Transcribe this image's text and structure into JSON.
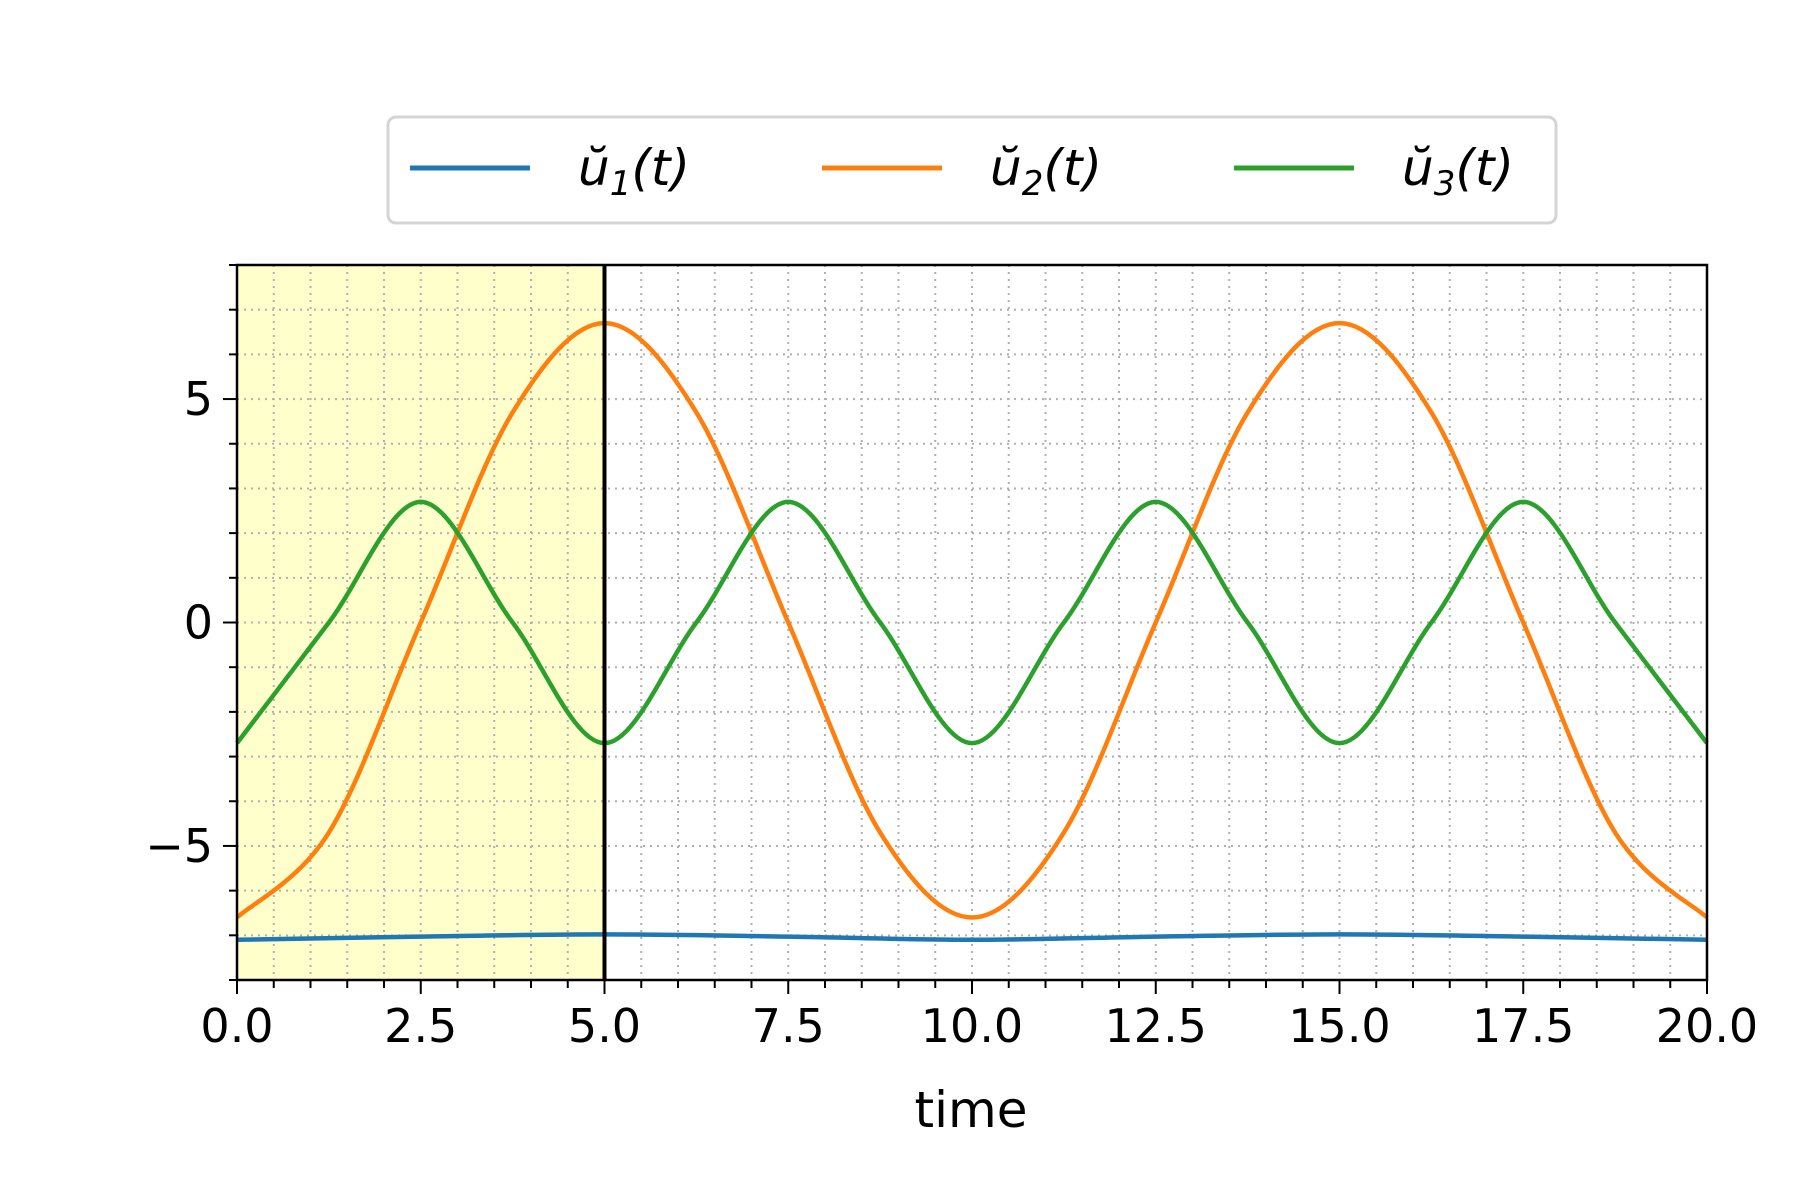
{
  "chart_data": {
    "type": "line",
    "xlabel": "time",
    "ylabel": "",
    "xlim": [
      0,
      20
    ],
    "ylim": [
      -8,
      8
    ],
    "x_ticks": [
      "0.0",
      "2.5",
      "5.0",
      "7.5",
      "10.0",
      "12.5",
      "15.0",
      "17.5",
      "20.0"
    ],
    "y_ticks": [
      "5",
      "0",
      "−5"
    ],
    "grid": true,
    "grid_style": "dotted major and minor",
    "legend_placement": "top-center, above plot, 3 columns",
    "highlight": {
      "x_from": 0,
      "x_to": 5,
      "color": "#ffffcc"
    },
    "vline": {
      "x": 5,
      "color": "#000000"
    },
    "series": [
      {
        "name": "ŭ1(t)",
        "legend_base": "ŭ",
        "legend_sub": "1",
        "legend_tail": "(t)",
        "color": "#1f77b4",
        "x": [
          0,
          2.5,
          5,
          7.5,
          10,
          12.5,
          15,
          17.5,
          20
        ],
        "y": [
          -7.1,
          -7.03,
          -6.98,
          -7.03,
          -7.1,
          -7.03,
          -6.98,
          -7.03,
          -7.1
        ]
      },
      {
        "name": "ŭ2(t)",
        "legend_base": "ŭ",
        "legend_sub": "2",
        "legend_tail": "(t)",
        "color": "#ff7f0e",
        "x": [
          0,
          1.25,
          2.5,
          3.75,
          5,
          6.25,
          7.5,
          8.75,
          10,
          11.25,
          12.5,
          13.75,
          15,
          16.25,
          17.5,
          18.75,
          20
        ],
        "y": [
          -6.6,
          -4.7,
          0,
          4.7,
          6.7,
          4.7,
          0,
          -4.7,
          -6.6,
          -4.7,
          0,
          4.7,
          6.7,
          4.7,
          0,
          -4.7,
          -6.6
        ]
      },
      {
        "name": "ŭ3(t)",
        "legend_base": "ŭ",
        "legend_sub": "3",
        "legend_tail": "(t)",
        "color": "#2ca02c",
        "x": [
          0,
          1.25,
          2.5,
          3.75,
          5,
          6.25,
          7.5,
          8.75,
          10,
          11.25,
          12.5,
          13.75,
          15,
          16.25,
          17.5,
          18.75,
          20
        ],
        "y": [
          -2.7,
          0,
          2.7,
          0,
          -2.7,
          0,
          2.7,
          0,
          -2.7,
          0,
          2.7,
          0,
          -2.7,
          0,
          2.7,
          0,
          -2.7
        ]
      }
    ]
  }
}
